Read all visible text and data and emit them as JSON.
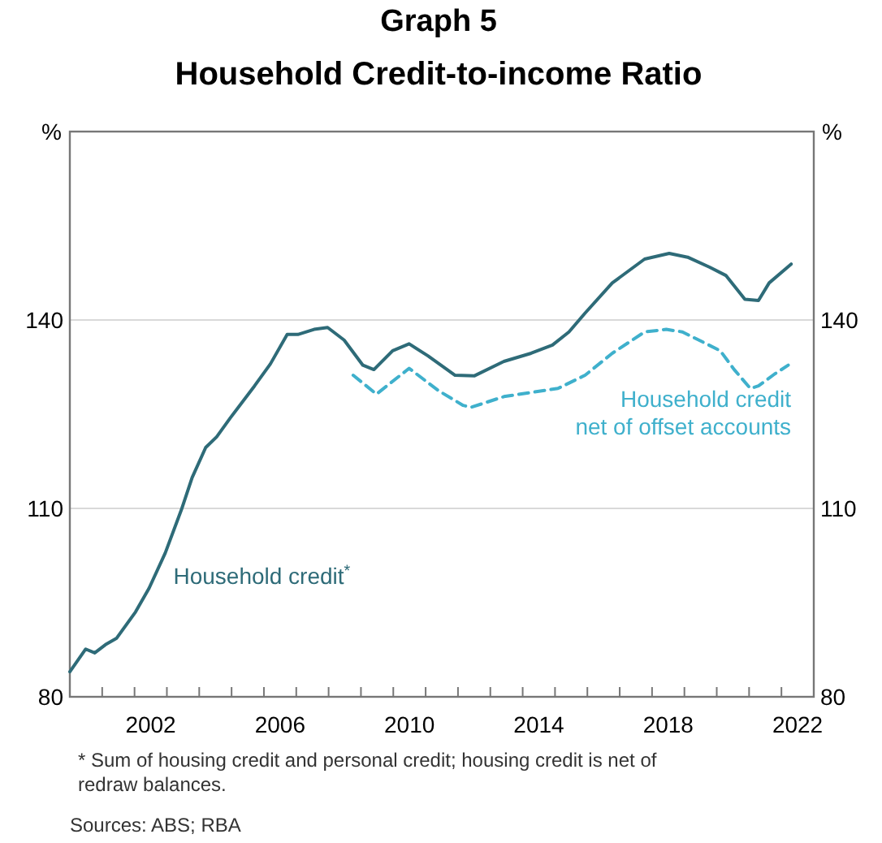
{
  "chart_data": {
    "type": "line",
    "title": "Graph 5",
    "subtitle": "Household Credit-to-income Ratio",
    "ylabel": "%",
    "y2label": "%",
    "xlim": [
      2000,
      2023
    ],
    "xticks": [
      {
        "value": 2001,
        "label": null
      },
      {
        "value": 2002,
        "label": null
      },
      {
        "value": 2002.5,
        "label": "2002"
      },
      {
        "value": 2003,
        "label": null
      },
      {
        "value": 2004,
        "label": null
      },
      {
        "value": 2005,
        "label": null
      },
      {
        "value": 2006,
        "label": null
      },
      {
        "value": 2006.5,
        "label": "2006"
      },
      {
        "value": 2007,
        "label": null
      },
      {
        "value": 2008,
        "label": null
      },
      {
        "value": 2009,
        "label": null
      },
      {
        "value": 2010,
        "label": null
      },
      {
        "value": 2010.5,
        "label": "2010"
      },
      {
        "value": 2011,
        "label": null
      },
      {
        "value": 2012,
        "label": null
      },
      {
        "value": 2013,
        "label": null
      },
      {
        "value": 2014,
        "label": null
      },
      {
        "value": 2014.5,
        "label": "2014"
      },
      {
        "value": 2015,
        "label": null
      },
      {
        "value": 2016,
        "label": null
      },
      {
        "value": 2017,
        "label": null
      },
      {
        "value": 2018,
        "label": null
      },
      {
        "value": 2018.5,
        "label": "2018"
      },
      {
        "value": 2019,
        "label": null
      },
      {
        "value": 2020,
        "label": null
      },
      {
        "value": 2021,
        "label": null
      },
      {
        "value": 2022,
        "label": null
      },
      {
        "value": 2022.5,
        "label": "2022"
      }
    ],
    "ylim": [
      80,
      170
    ],
    "yticks": [
      80,
      110,
      140
    ],
    "y2lim": [
      80,
      170
    ],
    "y2ticks": [
      80,
      110,
      140
    ],
    "grid": "y",
    "legend": false,
    "series": [
      {
        "name": "Household credit$^{*}$",
        "color": "#2e6b78",
        "line_style": "solid",
        "x": [
          2000.0,
          2000.49,
          2000.77,
          2001.1,
          2001.44,
          2002.03,
          2002.45,
          2002.95,
          2003.45,
          2003.78,
          2004.2,
          2004.54,
          2004.96,
          2005.71,
          2006.2,
          2006.72,
          2007.05,
          2007.55,
          2007.97,
          2008.48,
          2009.06,
          2009.4,
          2009.98,
          2010.49,
          2011.07,
          2011.91,
          2012.5,
          2013.42,
          2014.26,
          2014.92,
          2015.43,
          2015.93,
          2016.77,
          2017.77,
          2018.53,
          2019.1,
          2019.78,
          2020.28,
          2020.87,
          2021.29,
          2021.62,
          2022.3
        ],
        "values": [
          84.0,
          87.6,
          87.0,
          88.3,
          89.3,
          93.5,
          97.3,
          102.9,
          109.8,
          114.9,
          119.7,
          121.4,
          124.4,
          129.5,
          133.0,
          137.7,
          137.7,
          138.5,
          138.8,
          136.8,
          132.8,
          132.1,
          135.1,
          136.2,
          134.3,
          131.2,
          131.1,
          133.4,
          134.7,
          136.0,
          138.1,
          141.1,
          145.9,
          149.7,
          150.6,
          150.0,
          148.4,
          147.1,
          143.3,
          143.1,
          145.9,
          148.9
        ]
      },
      {
        "name": "Household credit\nnet of offset accounts",
        "color": "#3fb0cc",
        "line_style": "dashed",
        "x": [
          2008.76,
          2009.48,
          2010.49,
          2011.41,
          2012.16,
          2012.41,
          2013.42,
          2015.09,
          2015.93,
          2016.77,
          2017.77,
          2018.44,
          2018.94,
          2020.11,
          2020.54,
          2021.04,
          2021.29,
          2021.79,
          2022.21
        ],
        "values": [
          131.2,
          128.2,
          132.3,
          128.7,
          126.4,
          126.1,
          127.8,
          129.1,
          131.2,
          134.7,
          138.1,
          138.5,
          138.1,
          135.1,
          132.1,
          129.1,
          129.5,
          131.4,
          132.8
        ]
      }
    ],
    "annotations": [
      "* Sum of housing credit and personal credit; housing credit is net of redraw balances.",
      "Sources: ABS; RBA"
    ]
  }
}
